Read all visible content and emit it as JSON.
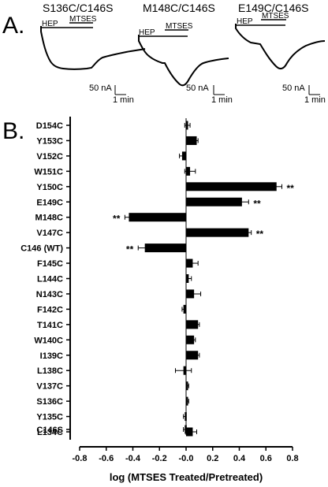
{
  "panel_a": {
    "letter": "A.",
    "traces": [
      {
        "title": "S136C/C146S",
        "hep_label": "HEP",
        "mtses_label": "MTSES",
        "scale_current": "50 nA",
        "scale_time": "1 min"
      },
      {
        "title": "M148C/C146S",
        "hep_label": "HEP",
        "mtses_label": "MTSES",
        "scale_current": "50 nA",
        "scale_time": "1 min"
      },
      {
        "title": "E149C/C146S",
        "hep_label": "HEP",
        "mtses_label": "MTSES",
        "scale_current": "50 nA",
        "scale_time": "1 min"
      }
    ]
  },
  "panel_b": {
    "letter": "B."
  },
  "chart_data": {
    "type": "bar",
    "orientation": "horizontal",
    "xlabel": "log (MTSES Treated/Pretreated)",
    "ylabel": "",
    "xlim": [
      -0.8,
      0.8
    ],
    "xticks": [
      "-0.8",
      "-0.6",
      "-0.4",
      "-0.2",
      "-0.0",
      "0.2",
      "0.4",
      "0.6",
      "0.8"
    ],
    "grid": false,
    "categories": [
      "D154C",
      "Y153C",
      "V152C",
      "W151C",
      "Y150C",
      "E149C",
      "M148C",
      "V147C",
      "C146 (WT)",
      "F145C",
      "L144C",
      "N143C",
      "F142C",
      "T141C",
      "W140C",
      "I139C",
      "L138C",
      "V137C",
      "S136C",
      "Y135C",
      "L134C",
      "C146S"
    ],
    "values": [
      0.01,
      0.08,
      -0.03,
      0.03,
      0.68,
      0.42,
      -0.43,
      0.47,
      -0.31,
      0.05,
      0.02,
      0.06,
      -0.02,
      0.09,
      0.06,
      0.09,
      -0.02,
      0.01,
      0.01,
      -0.01,
      0.05,
      -0.01
    ],
    "errors": [
      0.02,
      0.01,
      0.02,
      0.04,
      0.04,
      0.05,
      0.03,
      0.02,
      0.05,
      0.04,
      0.02,
      0.05,
      0.01,
      0.01,
      0.01,
      0.01,
      0.06,
      0.01,
      0.01,
      0.01,
      0.03,
      0.01
    ],
    "significance": [
      "",
      "",
      "",
      "",
      "**",
      "**",
      "**",
      "**",
      "**",
      "",
      "",
      "",
      "",
      "",
      "",
      "",
      "",
      "",
      "",
      "",
      "",
      ""
    ]
  }
}
